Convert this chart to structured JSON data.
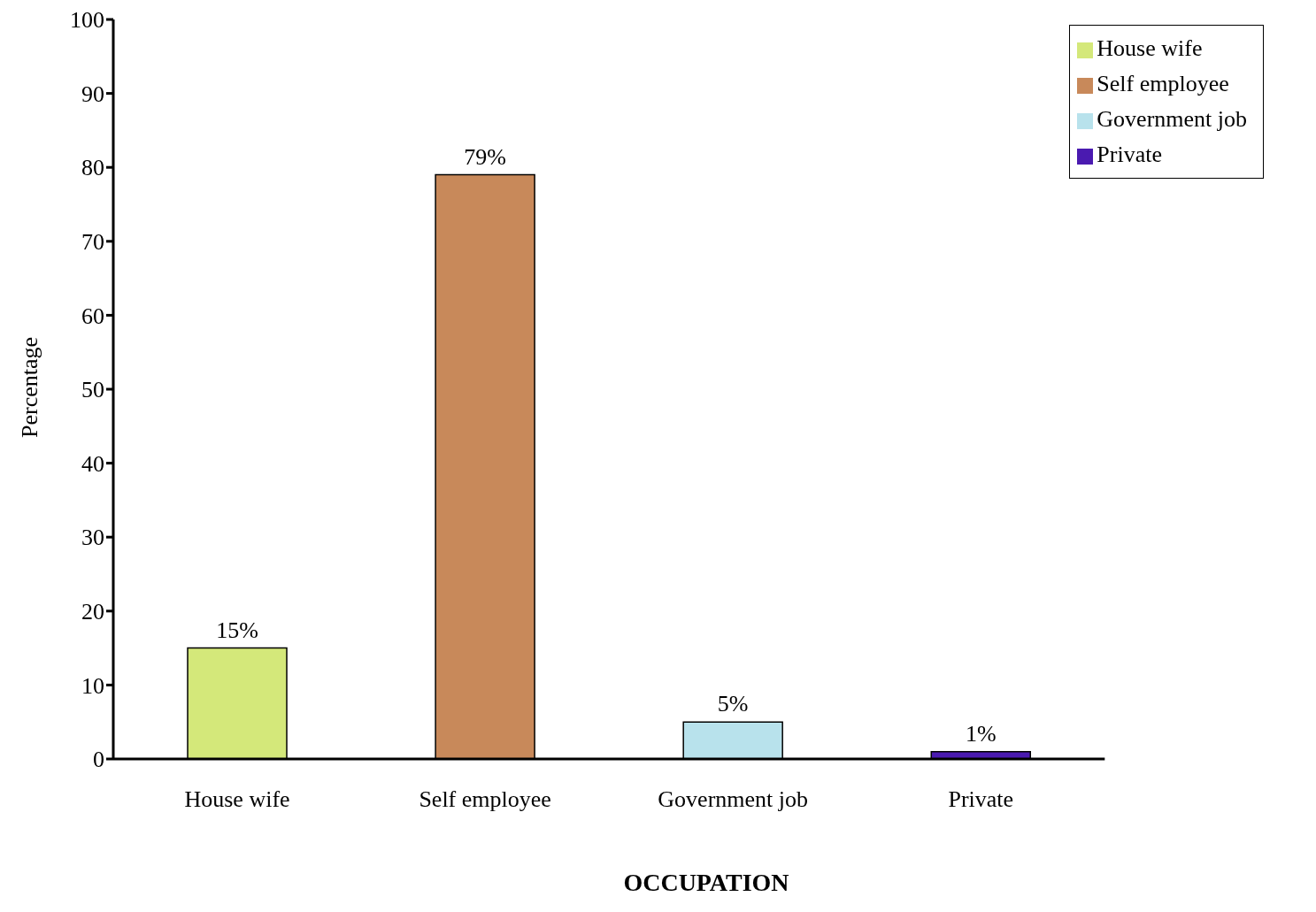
{
  "chart_data": {
    "type": "bar",
    "xlabel": "OCCUPATION",
    "ylabel": "Percentage",
    "categories": [
      "House wife",
      "Self employee",
      "Government job",
      "Private"
    ],
    "stacked": true,
    "series": [
      {
        "name": "House wife",
        "color": "#d4e87a",
        "values": [
          15,
          null,
          null,
          null
        ],
        "value_labels": [
          "15%",
          null,
          null,
          null
        ]
      },
      {
        "name": "Self employee",
        "color": "#c8895a",
        "values": [
          null,
          79,
          null,
          null
        ],
        "value_labels": [
          null,
          "79%",
          null,
          null
        ]
      },
      {
        "name": "Government job",
        "color": "#b8e2ec",
        "values": [
          null,
          null,
          5,
          null
        ],
        "value_labels": [
          null,
          null,
          "5%",
          null
        ]
      },
      {
        "name": "Private",
        "color": "#4a1ab0",
        "values": [
          null,
          null,
          null,
          1
        ],
        "value_labels": [
          null,
          null,
          null,
          "1%"
        ]
      }
    ],
    "ylim": [
      0,
      100
    ],
    "yticks": [
      0,
      10,
      20,
      30,
      40,
      50,
      60,
      70,
      80,
      90,
      100
    ],
    "grid": false,
    "legend": "top right"
  }
}
